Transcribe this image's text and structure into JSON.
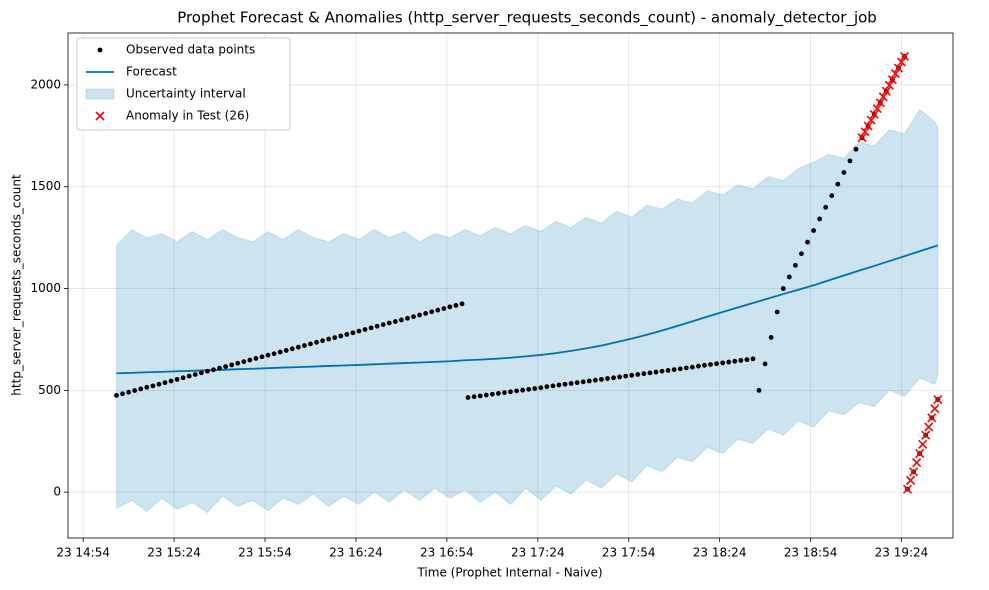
{
  "chart_data": {
    "type": "line",
    "title": "Prophet Forecast & Anomalies (http_server_requests_seconds_count) - anomaly_detector_job",
    "x_label": "Time (Prophet Internal - Naive)",
    "y_label": "http_server_requests_seconds_count",
    "xlim": [
      "23 14:49",
      "23 19:41"
    ],
    "xticks": [
      "23 14:54",
      "23 15:24",
      "23 15:54",
      "23 16:24",
      "23 16:54",
      "23 17:24",
      "23 17:54",
      "23 18:24",
      "23 18:54",
      "23 19:24"
    ],
    "ylim": [
      -225,
      2255
    ],
    "yticks": [
      0,
      500,
      1000,
      1500,
      2000
    ],
    "grid": true,
    "legend": "upper left",
    "series": [
      {
        "name": "Observed data points",
        "kind": "points",
        "color": "#000000",
        "x": [
          "23 15:05",
          "23 15:07",
          "23 15:09",
          "23 15:11",
          "23 15:13",
          "23 15:15",
          "23 15:17",
          "23 15:19",
          "23 15:21",
          "23 15:23",
          "23 15:25",
          "23 15:27",
          "23 15:29",
          "23 15:31",
          "23 15:33",
          "23 15:35",
          "23 15:37",
          "23 15:39",
          "23 15:41",
          "23 15:43",
          "23 15:45",
          "23 15:47",
          "23 15:49",
          "23 15:51",
          "23 15:53",
          "23 15:55",
          "23 15:57",
          "23 15:59",
          "23 16:01",
          "23 16:03",
          "23 16:05",
          "23 16:07",
          "23 16:09",
          "23 16:11",
          "23 16:13",
          "23 16:15",
          "23 16:17",
          "23 16:19",
          "23 16:21",
          "23 16:23",
          "23 16:25",
          "23 16:27",
          "23 16:29",
          "23 16:31",
          "23 16:33",
          "23 16:35",
          "23 16:37",
          "23 16:39",
          "23 16:41",
          "23 16:43",
          "23 16:45",
          "23 16:47",
          "23 16:49",
          "23 16:51",
          "23 16:53",
          "23 16:55",
          "23 16:57",
          "23 16:59",
          "23 17:01",
          "23 17:03",
          "23 17:05",
          "23 17:07",
          "23 17:09",
          "23 17:11",
          "23 17:13",
          "23 17:15",
          "23 17:17",
          "23 17:19",
          "23 17:21",
          "23 17:23",
          "23 17:25",
          "23 17:27",
          "23 17:29",
          "23 17:31",
          "23 17:33",
          "23 17:35",
          "23 17:37",
          "23 17:39",
          "23 17:41",
          "23 17:43",
          "23 17:45",
          "23 17:47",
          "23 17:49",
          "23 17:51",
          "23 17:53",
          "23 17:55",
          "23 17:57",
          "23 17:59",
          "23 18:01",
          "23 18:03",
          "23 18:05",
          "23 18:07",
          "23 18:09",
          "23 18:11",
          "23 18:13",
          "23 18:15",
          "23 18:17",
          "23 18:19",
          "23 18:21",
          "23 18:23",
          "23 18:25",
          "23 18:27",
          "23 18:29",
          "23 18:31",
          "23 18:33",
          "23 18:35",
          "23 18:37",
          "23 18:39",
          "23 18:41",
          "23 18:43",
          "23 18:45",
          "23 18:47",
          "23 18:49",
          "23 18:51",
          "23 18:53",
          "23 18:55",
          "23 18:57",
          "23 18:59",
          "23 19:01",
          "23 19:03",
          "23 19:05",
          "23 19:07",
          "23 19:09",
          "23 19:11",
          "23 19:13",
          "23 19:15",
          "23 19:17",
          "23 19:19",
          "23 19:21",
          "23 19:23",
          "23 19:25",
          "23 19:26",
          "23 19:28",
          "23 19:30",
          "23 19:32",
          "23 19:34",
          "23 19:36"
        ],
        "values": [
          475,
          483,
          491,
          499,
          507,
          515,
          522,
          530,
          538,
          546,
          554,
          562,
          570,
          578,
          586,
          594,
          601,
          609,
          617,
          625,
          633,
          641,
          649,
          657,
          665,
          673,
          680,
          688,
          696,
          704,
          712,
          720,
          728,
          736,
          744,
          752,
          759,
          767,
          775,
          783,
          791,
          799,
          807,
          815,
          823,
          831,
          838,
          846,
          854,
          862,
          870,
          878,
          886,
          894,
          902,
          910,
          917,
          925,
          465,
          469,
          473,
          477,
          481,
          485,
          489,
          493,
          497,
          501,
          505,
          509,
          513,
          518,
          522,
          526,
          530,
          534,
          538,
          542,
          546,
          550,
          554,
          558,
          562,
          566,
          570,
          574,
          578,
          582,
          586,
          590,
          594,
          598,
          602,
          606,
          610,
          614,
          619,
          623,
          627,
          631,
          635,
          639,
          643,
          647,
          651,
          655,
          500,
          630,
          760,
          885,
          1000,
          1057,
          1114,
          1171,
          1228,
          1285,
          1342,
          1399,
          1456,
          1513,
          1570,
          1627,
          1684,
          1741,
          1798,
          1855,
          1912,
          1969,
          2026,
          2083,
          2140,
          15,
          100,
          190,
          280,
          365,
          455
        ]
      },
      {
        "name": "Forecast",
        "kind": "line",
        "color": "#0072B2",
        "x": [
          "23 15:05",
          "23 15:10",
          "23 15:15",
          "23 15:20",
          "23 15:25",
          "23 15:30",
          "23 15:35",
          "23 15:40",
          "23 15:45",
          "23 15:50",
          "23 15:55",
          "23 16:00",
          "23 16:05",
          "23 16:10",
          "23 16:15",
          "23 16:20",
          "23 16:25",
          "23 16:30",
          "23 16:35",
          "23 16:40",
          "23 16:45",
          "23 16:50",
          "23 16:55",
          "23 17:00",
          "23 17:05",
          "23 17:10",
          "23 17:15",
          "23 17:20",
          "23 17:25",
          "23 17:30",
          "23 17:35",
          "23 17:40",
          "23 17:45",
          "23 17:50",
          "23 17:55",
          "23 18:00",
          "23 18:05",
          "23 18:10",
          "23 18:15",
          "23 18:20",
          "23 18:25",
          "23 18:30",
          "23 18:35",
          "23 18:40",
          "23 18:45",
          "23 18:50",
          "23 18:55",
          "23 19:00",
          "23 19:05",
          "23 19:10",
          "23 19:15",
          "23 19:20",
          "23 19:25",
          "23 19:30",
          "23 19:35",
          "23 19:36"
        ],
        "values": [
          584,
          586,
          589,
          591,
          594,
          596,
          599,
          601,
          604,
          606,
          609,
          612,
          614,
          617,
          620,
          622,
          625,
          628,
          631,
          634,
          637,
          640,
          643,
          648,
          651,
          655,
          660,
          667,
          674,
          683,
          694,
          706,
          720,
          737,
          754,
          773,
          794,
          816,
          839,
          862,
          885,
          907,
          929,
          951,
          973,
          994,
          1016,
          1040,
          1064,
          1088,
          1111,
          1135,
          1159,
          1183,
          1207,
          1212
        ]
      },
      {
        "name": "Uncertainty interval",
        "kind": "band",
        "color": "#0072B2",
        "x": [
          "23 15:05",
          "23 15:10",
          "23 15:15",
          "23 15:20",
          "23 15:25",
          "23 15:30",
          "23 15:35",
          "23 15:40",
          "23 15:45",
          "23 15:50",
          "23 15:55",
          "23 16:00",
          "23 16:05",
          "23 16:10",
          "23 16:15",
          "23 16:20",
          "23 16:25",
          "23 16:30",
          "23 16:35",
          "23 16:40",
          "23 16:45",
          "23 16:50",
          "23 16:55",
          "23 17:00",
          "23 17:05",
          "23 17:10",
          "23 17:15",
          "23 17:20",
          "23 17:25",
          "23 17:30",
          "23 17:35",
          "23 17:40",
          "23 17:45",
          "23 17:50",
          "23 17:55",
          "23 18:00",
          "23 18:05",
          "23 18:10",
          "23 18:15",
          "23 18:20",
          "23 18:25",
          "23 18:30",
          "23 18:35",
          "23 18:40",
          "23 18:45",
          "23 18:50",
          "23 18:55",
          "23 19:00",
          "23 19:05",
          "23 19:10",
          "23 19:15",
          "23 19:20",
          "23 19:25",
          "23 19:30",
          "23 19:35",
          "23 19:36"
        ],
        "lower": [
          -80,
          -40,
          -95,
          -30,
          -85,
          -50,
          -100,
          -20,
          -70,
          -40,
          -90,
          -30,
          -60,
          -10,
          -70,
          -20,
          -60,
          0,
          -50,
          10,
          -40,
          20,
          -30,
          10,
          -50,
          0,
          -60,
          20,
          -40,
          30,
          -10,
          60,
          20,
          90,
          50,
          130,
          100,
          170,
          150,
          220,
          190,
          260,
          240,
          310,
          280,
          350,
          320,
          400,
          380,
          440,
          420,
          500,
          470,
          560,
          530,
          575
        ],
        "upper": [
          1210,
          1290,
          1250,
          1270,
          1230,
          1280,
          1240,
          1290,
          1250,
          1230,
          1280,
          1240,
          1290,
          1250,
          1230,
          1270,
          1240,
          1290,
          1250,
          1280,
          1230,
          1270,
          1250,
          1290,
          1260,
          1300,
          1270,
          1310,
          1280,
          1330,
          1300,
          1350,
          1320,
          1380,
          1350,
          1410,
          1390,
          1440,
          1420,
          1480,
          1460,
          1510,
          1490,
          1550,
          1530,
          1590,
          1620,
          1660,
          1640,
          1720,
          1700,
          1780,
          1760,
          1880,
          1820,
          1790
        ]
      },
      {
        "name": "Anomaly in Test (26)",
        "kind": "cross",
        "color": "#ff0000",
        "x": [
          "23 19:11",
          "23 19:12",
          "23 19:13",
          "23 19:14",
          "23 19:15",
          "23 19:16",
          "23 19:17",
          "23 19:18",
          "23 19:19",
          "23 19:20",
          "23 19:21",
          "23 19:22",
          "23 19:23",
          "23 19:24",
          "23 19:25",
          "23 19:26",
          "23 19:27",
          "23 19:28",
          "23 19:29",
          "23 19:30",
          "23 19:31",
          "23 19:32",
          "23 19:33",
          "23 19:34",
          "23 19:35",
          "23 19:36"
        ],
        "values": [
          1741,
          1770,
          1798,
          1827,
          1855,
          1884,
          1912,
          1941,
          1969,
          1998,
          2026,
          2055,
          2083,
          2112,
          2140,
          15,
          58,
          100,
          145,
          190,
          235,
          280,
          320,
          365,
          410,
          455
        ]
      }
    ]
  }
}
